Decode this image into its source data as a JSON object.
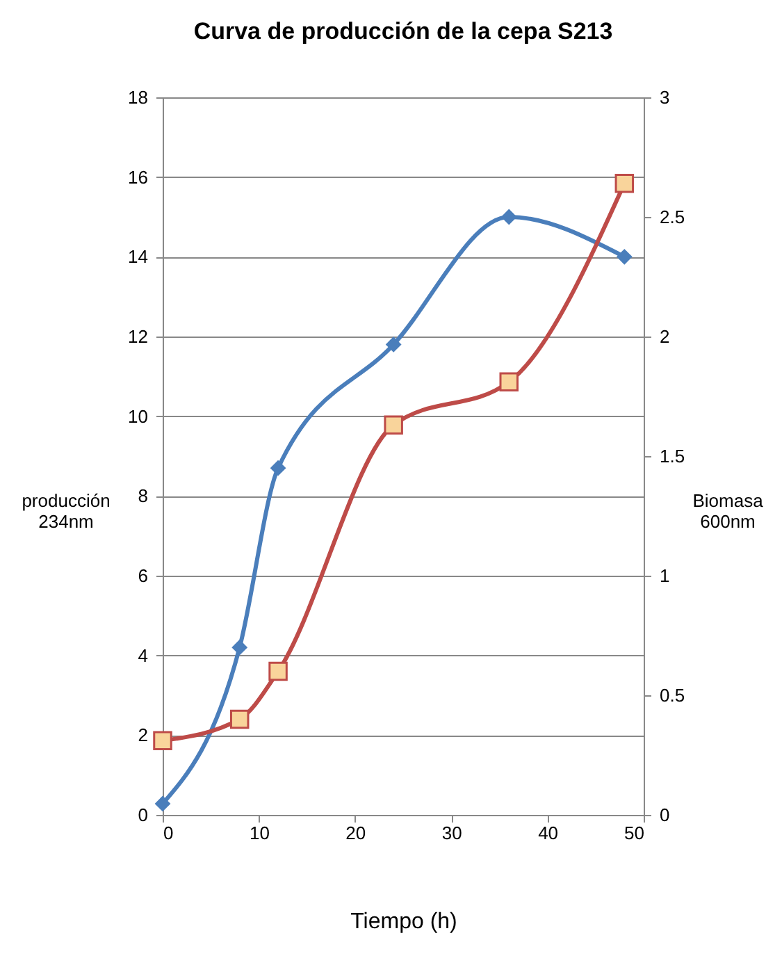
{
  "chart_data": {
    "type": "line",
    "title": "Curva de producción de la cepa  S213",
    "xlabel": "Tiempo (h)",
    "ylabel": "producción\n234nm",
    "y2label": "Biomasa\n600nm",
    "x": [
      0,
      8,
      12,
      24,
      36,
      48
    ],
    "series": [
      {
        "color": "#4a7ebb",
        "marker": "diamond",
        "values": [
          0.28,
          4.2,
          8.7,
          11.8,
          15.0,
          14.0
        ]
      },
      {
        "color": "#be4b48",
        "marker": "square",
        "axis": "y2",
        "values": [
          0.31,
          0.4,
          0.6,
          1.63,
          1.81,
          2.64
        ]
      }
    ],
    "xlim": [
      0,
      50
    ],
    "xticks": [
      0,
      10,
      20,
      30,
      40,
      50
    ],
    "ylim": [
      0,
      18
    ],
    "yticks": [
      0,
      2,
      4,
      6,
      8,
      10,
      12,
      14,
      16,
      18
    ],
    "y2lim": [
      0,
      3
    ],
    "y2ticks": [
      0,
      0.5,
      1,
      1.5,
      2,
      2.5,
      3
    ],
    "grid": "y"
  }
}
